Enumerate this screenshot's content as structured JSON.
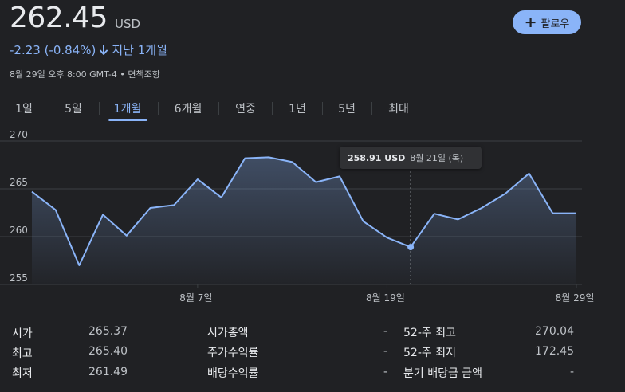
{
  "quote": {
    "price": "262.45",
    "currency": "USD",
    "change": "-2.23 (-0.84%)",
    "period": "지난 1개월",
    "meta": "8월 29일 오후 8:00 GMT-4 • 면책조항",
    "follow_label": "팔로우"
  },
  "tabs": [
    {
      "label": "1일"
    },
    {
      "label": "5일"
    },
    {
      "label": "1개월",
      "active": true
    },
    {
      "label": "6개월"
    },
    {
      "label": "연중"
    },
    {
      "label": "1년"
    },
    {
      "label": "5년"
    },
    {
      "label": "최대"
    }
  ],
  "tooltip": {
    "price": "258.91 USD",
    "date": "8월 21일 (목)"
  },
  "colors": {
    "line": "#8ab4f8",
    "background": "#202124",
    "grid": "#3c4043"
  },
  "chart_data": {
    "type": "area",
    "title": "",
    "xlabel": "",
    "ylabel": "",
    "ylim": [
      255,
      270
    ],
    "yticks": [
      270,
      265,
      260,
      255
    ],
    "xtick_labels": [
      {
        "label": "8월 7일",
        "index": 7
      },
      {
        "label": "8월 19일",
        "index": 15
      },
      {
        "label": "8월 29일",
        "index": 23
      }
    ],
    "values": [
      264.7,
      262.8,
      257.0,
      262.3,
      260.1,
      263.0,
      263.3,
      266.0,
      264.1,
      268.2,
      268.3,
      267.8,
      265.7,
      266.3,
      261.6,
      259.9,
      258.91,
      262.4,
      261.8,
      263.0,
      264.5,
      266.6,
      262.45,
      262.45
    ],
    "highlight_index": 16
  },
  "stats": [
    [
      {
        "label": "시가",
        "value": "265.37"
      },
      {
        "label": "시가총액",
        "value": "-"
      },
      {
        "label": "52-주 최고",
        "value": "270.04"
      }
    ],
    [
      {
        "label": "최고",
        "value": "265.40"
      },
      {
        "label": "주가수익률",
        "value": "-"
      },
      {
        "label": "52-주 최저",
        "value": "172.45"
      }
    ],
    [
      {
        "label": "최저",
        "value": "261.49"
      },
      {
        "label": "배당수익률",
        "value": "-"
      },
      {
        "label": "분기 배당금 금액",
        "value": "-"
      }
    ]
  ]
}
